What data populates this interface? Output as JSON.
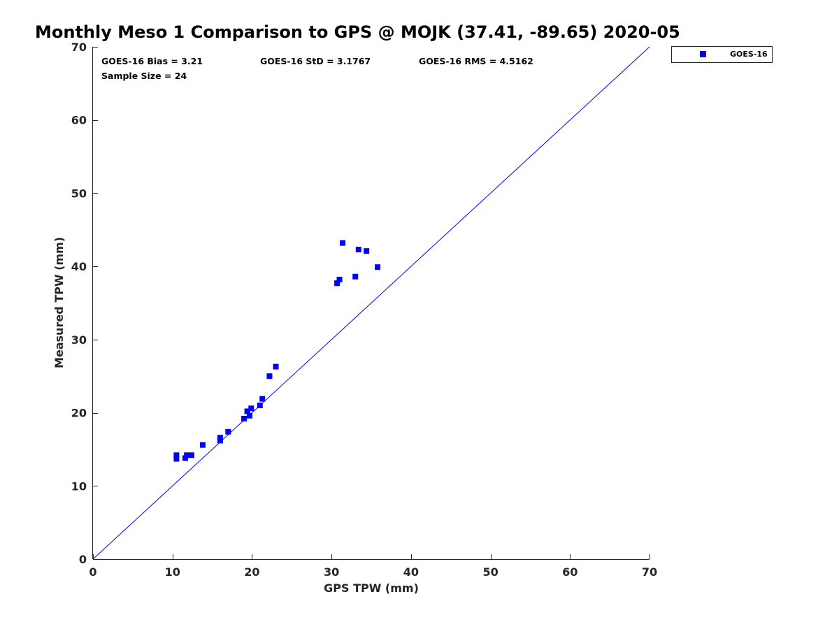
{
  "chart_data": {
    "type": "scatter",
    "title": "Monthly Meso 1 Comparison to GPS @ MOJK (37.41, -89.65) 2020-05",
    "xlabel": "GPS TPW (mm)",
    "ylabel": "Measured TPW (mm)",
    "xlim": [
      0,
      70
    ],
    "ylim": [
      0,
      70
    ],
    "xticks": [
      0,
      10,
      20,
      30,
      40,
      50,
      60,
      70
    ],
    "yticks": [
      0,
      10,
      20,
      30,
      40,
      50,
      60,
      70
    ],
    "grid": false,
    "legend_position": "outside-top-right",
    "reference_line": {
      "from": [
        0,
        0
      ],
      "to": [
        70,
        70
      ],
      "color": "#0000ff"
    },
    "stats": {
      "bias": "GOES-16 Bias = 3.21",
      "std": "GOES-16 StD = 3.1767",
      "rms": "GOES-16 RMS = 4.5162",
      "sample_size": "Sample Size = 24"
    },
    "series": [
      {
        "name": "GOES-16",
        "color": "#0000ff",
        "marker": "square",
        "points": [
          {
            "x": 10.5,
            "y": 13.7
          },
          {
            "x": 10.5,
            "y": 14.2
          },
          {
            "x": 11.6,
            "y": 13.8
          },
          {
            "x": 11.8,
            "y": 14.2
          },
          {
            "x": 12.4,
            "y": 14.2
          },
          {
            "x": 13.8,
            "y": 15.6
          },
          {
            "x": 16.0,
            "y": 16.2
          },
          {
            "x": 16.0,
            "y": 16.6
          },
          {
            "x": 17.0,
            "y": 17.4
          },
          {
            "x": 19.0,
            "y": 19.2
          },
          {
            "x": 19.4,
            "y": 20.2
          },
          {
            "x": 19.7,
            "y": 19.6
          },
          {
            "x": 19.9,
            "y": 20.6
          },
          {
            "x": 21.0,
            "y": 21.0
          },
          {
            "x": 21.3,
            "y": 21.9
          },
          {
            "x": 22.2,
            "y": 25.0
          },
          {
            "x": 23.0,
            "y": 26.3
          },
          {
            "x": 30.7,
            "y": 37.7
          },
          {
            "x": 31.0,
            "y": 38.2
          },
          {
            "x": 31.4,
            "y": 43.2
          },
          {
            "x": 33.0,
            "y": 38.6
          },
          {
            "x": 33.4,
            "y": 42.3
          },
          {
            "x": 34.4,
            "y": 42.1
          },
          {
            "x": 35.8,
            "y": 39.9
          }
        ]
      }
    ]
  }
}
